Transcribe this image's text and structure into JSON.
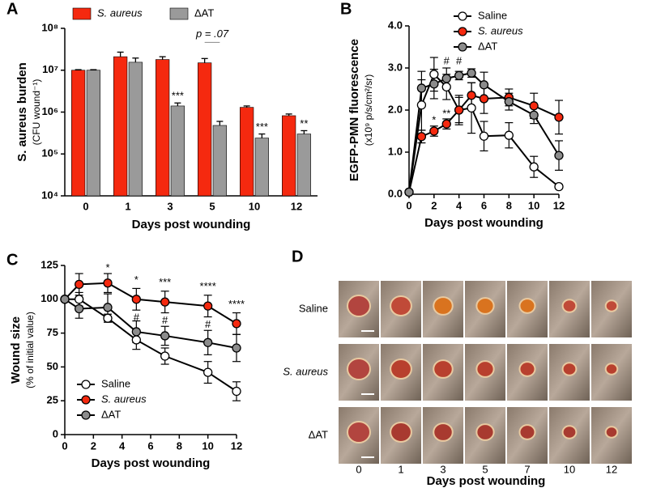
{
  "chart_data": [
    {
      "type": "bar",
      "panel": "A",
      "log_scale": true,
      "legend": "top",
      "y_label": "S. aureus burden",
      "y_sublabel": "(CFU wound⁻¹)",
      "x_label": "Days post wounding",
      "categories": [
        "0",
        "1",
        "3",
        "5",
        "10",
        "12"
      ],
      "ylim": [
        10000,
        100000000
      ],
      "yticks": [
        {
          "value": 10000,
          "label": "10⁴"
        },
        {
          "value": 100000,
          "label": "10⁵"
        },
        {
          "value": 1000000,
          "label": "10⁶"
        },
        {
          "value": 10000000,
          "label": "10⁷"
        },
        {
          "value": 100000000,
          "label": "10⁸"
        }
      ],
      "series": [
        {
          "name": "S. aureus",
          "color": "#f5290f",
          "values": [
            10000000,
            21000000,
            18000000,
            15000000,
            1300000,
            820000
          ],
          "errors": [
            300000,
            6000000,
            3000000,
            4000000,
            100000,
            80000
          ]
        },
        {
          "name": "ΔAT",
          "color": "#9a9a9a",
          "values": [
            10000000,
            15500000,
            1400000,
            480000,
            240000,
            300000
          ],
          "errors": [
            300000,
            4000000,
            250000,
            120000,
            60000,
            60000
          ]
        }
      ],
      "significance": [
        null,
        null,
        "***",
        "p = .07",
        "***",
        "**"
      ]
    },
    {
      "type": "line",
      "panel": "B",
      "legend": "upper right",
      "line_color": "#000000",
      "y_label": "EGFP-PMN fluorescence",
      "y_sublabel": "(x10⁹ p/s/cm²/sr)",
      "x_label": "Days post wounding",
      "x": [
        0,
        1,
        2,
        3,
        4,
        5,
        6,
        8,
        10,
        12
      ],
      "xlim": [
        0,
        12
      ],
      "xticks": [
        0,
        2,
        4,
        6,
        8,
        10,
        12
      ],
      "ylim": [
        0,
        4
      ],
      "yticks": [
        {
          "value": 0,
          "label": "0.0"
        },
        {
          "value": 1,
          "label": "1.0"
        },
        {
          "value": 2,
          "label": "2.0"
        },
        {
          "value": 3,
          "label": "3.0"
        },
        {
          "value": 4,
          "label": "4.0"
        }
      ],
      "series": [
        {
          "name": "Saline",
          "color": "#ffffff",
          "values": [
            0.05,
            2.12,
            2.85,
            2.55,
            2.0,
            2.05,
            1.38,
            1.4,
            0.65,
            0.18
          ],
          "errors": [
            0.02,
            0.6,
            0.4,
            0.3,
            0.35,
            0.6,
            0.35,
            0.3,
            0.25,
            0.05
          ]
        },
        {
          "name": "S. aureus",
          "color": "#f5290f",
          "values": [
            0.05,
            1.37,
            1.5,
            1.67,
            2.0,
            2.35,
            2.27,
            2.3,
            2.1,
            1.83
          ],
          "errors": [
            0.02,
            0.15,
            0.12,
            0.12,
            0.3,
            0.3,
            0.35,
            0.2,
            0.3,
            0.4
          ]
        },
        {
          "name": "ΔAT",
          "color": "#8c8c8c",
          "values": [
            0.05,
            2.52,
            2.62,
            2.75,
            2.82,
            2.88,
            2.6,
            2.2,
            1.88,
            0.92
          ],
          "errors": [
            0.02,
            0.4,
            0.35,
            0.25,
            0.1,
            0.1,
            0.3,
            0.2,
            0.2,
            0.35
          ]
        }
      ],
      "annotations": [
        {
          "text": "*",
          "x": 2,
          "y": 1.75
        },
        {
          "text": "**",
          "x": 3,
          "y": 1.9
        },
        {
          "text": "#",
          "x": 3,
          "y": 3.15
        },
        {
          "text": "#",
          "x": 4,
          "y": 3.15
        }
      ]
    },
    {
      "type": "line",
      "panel": "C",
      "legend": "lower left",
      "line_color": "#000000",
      "y_label": "Wound size",
      "y_sublabel": "(% of initial value)",
      "x_label": "Days post wounding",
      "x": [
        0,
        1,
        3,
        5,
        7,
        10,
        12
      ],
      "xlim": [
        0,
        12
      ],
      "xticks": [
        0,
        2,
        4,
        6,
        8,
        10,
        12
      ],
      "ylim": [
        0,
        125
      ],
      "yticks": [
        0,
        25,
        50,
        75,
        100,
        125
      ],
      "series": [
        {
          "name": "Saline",
          "color": "#ffffff",
          "values": [
            100,
            100,
            86,
            70,
            58,
            46,
            32
          ],
          "errors": [
            0,
            5,
            3,
            7,
            6,
            8,
            7
          ]
        },
        {
          "name": "S. aureus",
          "color": "#f5290f",
          "values": [
            100,
            111,
            112,
            100,
            98,
            95,
            82
          ],
          "errors": [
            0,
            8,
            7,
            8,
            8,
            8,
            8
          ]
        },
        {
          "name": "ΔAT",
          "color": "#8c8c8c",
          "values": [
            100,
            93,
            94,
            76,
            73,
            68,
            64
          ],
          "errors": [
            0,
            7,
            10,
            8,
            7,
            9,
            10
          ]
        }
      ],
      "annotations": [
        {
          "text": "*",
          "x": 3,
          "y": 123
        },
        {
          "text": "*",
          "x": 5,
          "y": 114
        },
        {
          "text": "***",
          "x": 7,
          "y": 112
        },
        {
          "text": "****",
          "x": 10,
          "y": 109
        },
        {
          "text": "****",
          "x": 12,
          "y": 96
        },
        {
          "text": "#",
          "x": 5,
          "y": 86
        },
        {
          "text": "#",
          "x": 7,
          "y": 84
        },
        {
          "text": "#",
          "x": 10,
          "y": 81
        }
      ]
    }
  ],
  "image_grid": {
    "panel": "D",
    "rows": [
      "Saline",
      "S. aureus",
      "ΔAT"
    ],
    "columns": [
      "0",
      "1",
      "3",
      "5",
      "7",
      "10",
      "12"
    ],
    "x_label": "Days post wounding"
  }
}
